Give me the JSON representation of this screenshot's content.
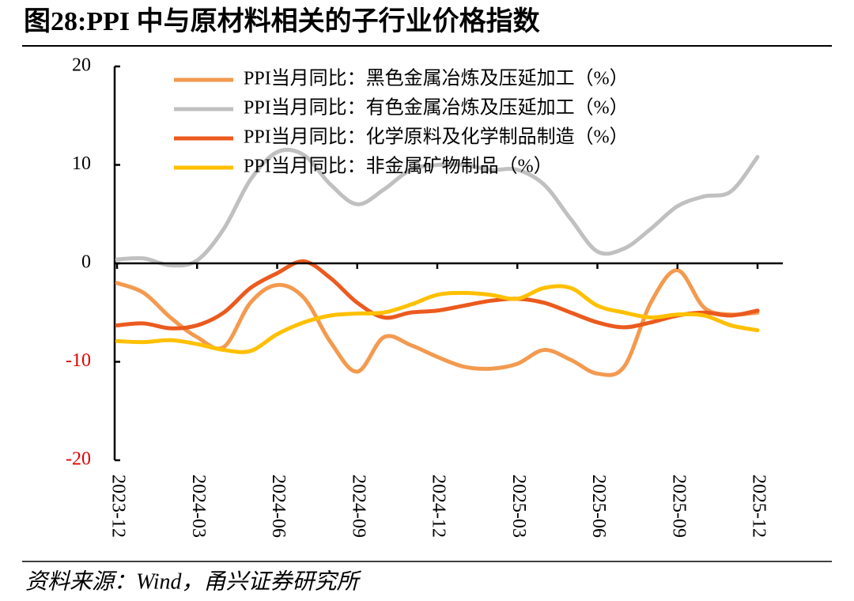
{
  "chart_data": {
    "type": "line",
    "title": "图28:PPI 中与原材料相关的子行业价格指数",
    "source": "资料来源：Wind，甬兴证券研究所",
    "categories": [
      "2023-12",
      null,
      null,
      "2024-03",
      null,
      null,
      "2024-06",
      null,
      null,
      "2024-09",
      null,
      null,
      "2024-12",
      null,
      null,
      "2025-03",
      null,
      null,
      "2025-06",
      null,
      null,
      "2025-09",
      null,
      null,
      "2025-12"
    ],
    "ylim": [
      -20,
      20
    ],
    "yticks": [
      -20,
      -10,
      0,
      10,
      20
    ],
    "negative_tick_color": "#e00000",
    "legend": "upper left",
    "series": [
      {
        "name": "PPI当月同比：黑色金属冶炼及压延加工（%）",
        "color": "#f39a4f",
        "values": [
          -2,
          -3,
          -5.5,
          -7.5,
          -8.5,
          -4,
          -2.2,
          -3.5,
          -8,
          -11,
          -7.5,
          -8.3,
          -9.5,
          -10.5,
          -10.7,
          -10.2,
          -8.8,
          -9.8,
          -11.2,
          -10.5,
          -4,
          -0.7,
          -4.5,
          -5.2,
          -5
        ]
      },
      {
        "name": "PPI当月同比：有色金属冶炼及压延加工（%）",
        "color": "#c0c0c0",
        "values": [
          0.4,
          0.5,
          -0.2,
          0.3,
          3.5,
          8.5,
          11.3,
          11,
          8,
          6,
          7.5,
          9.5,
          10,
          10,
          9.5,
          9.5,
          8,
          4.5,
          1.2,
          1.5,
          3.5,
          5.8,
          6.8,
          7.3,
          10.8
        ]
      },
      {
        "name": "PPI当月同比：化学原料及化学制品制造（%）",
        "color": "#eb5a1e",
        "values": [
          -6.3,
          -6.1,
          -6.6,
          -6.3,
          -5,
          -2.5,
          -1,
          0.2,
          -1.5,
          -4,
          -5.5,
          -5,
          -4.8,
          -4.3,
          -3.8,
          -3.6,
          -4,
          -5,
          -6,
          -6.5,
          -6,
          -5.3,
          -5,
          -5.3,
          -4.8
        ]
      },
      {
        "name": "PPI当月同比：非金属矿物制品（%）",
        "color": "#ffc000",
        "values": [
          -7.9,
          -8,
          -7.8,
          -8.2,
          -8.8,
          -8.9,
          -7.2,
          -6,
          -5.3,
          -5.1,
          -5,
          -4.2,
          -3.2,
          -3,
          -3.2,
          -3.6,
          -2.5,
          -2.5,
          -4.3,
          -5,
          -5.5,
          -5.2,
          -5.3,
          -6.3,
          -6.8
        ]
      }
    ]
  }
}
